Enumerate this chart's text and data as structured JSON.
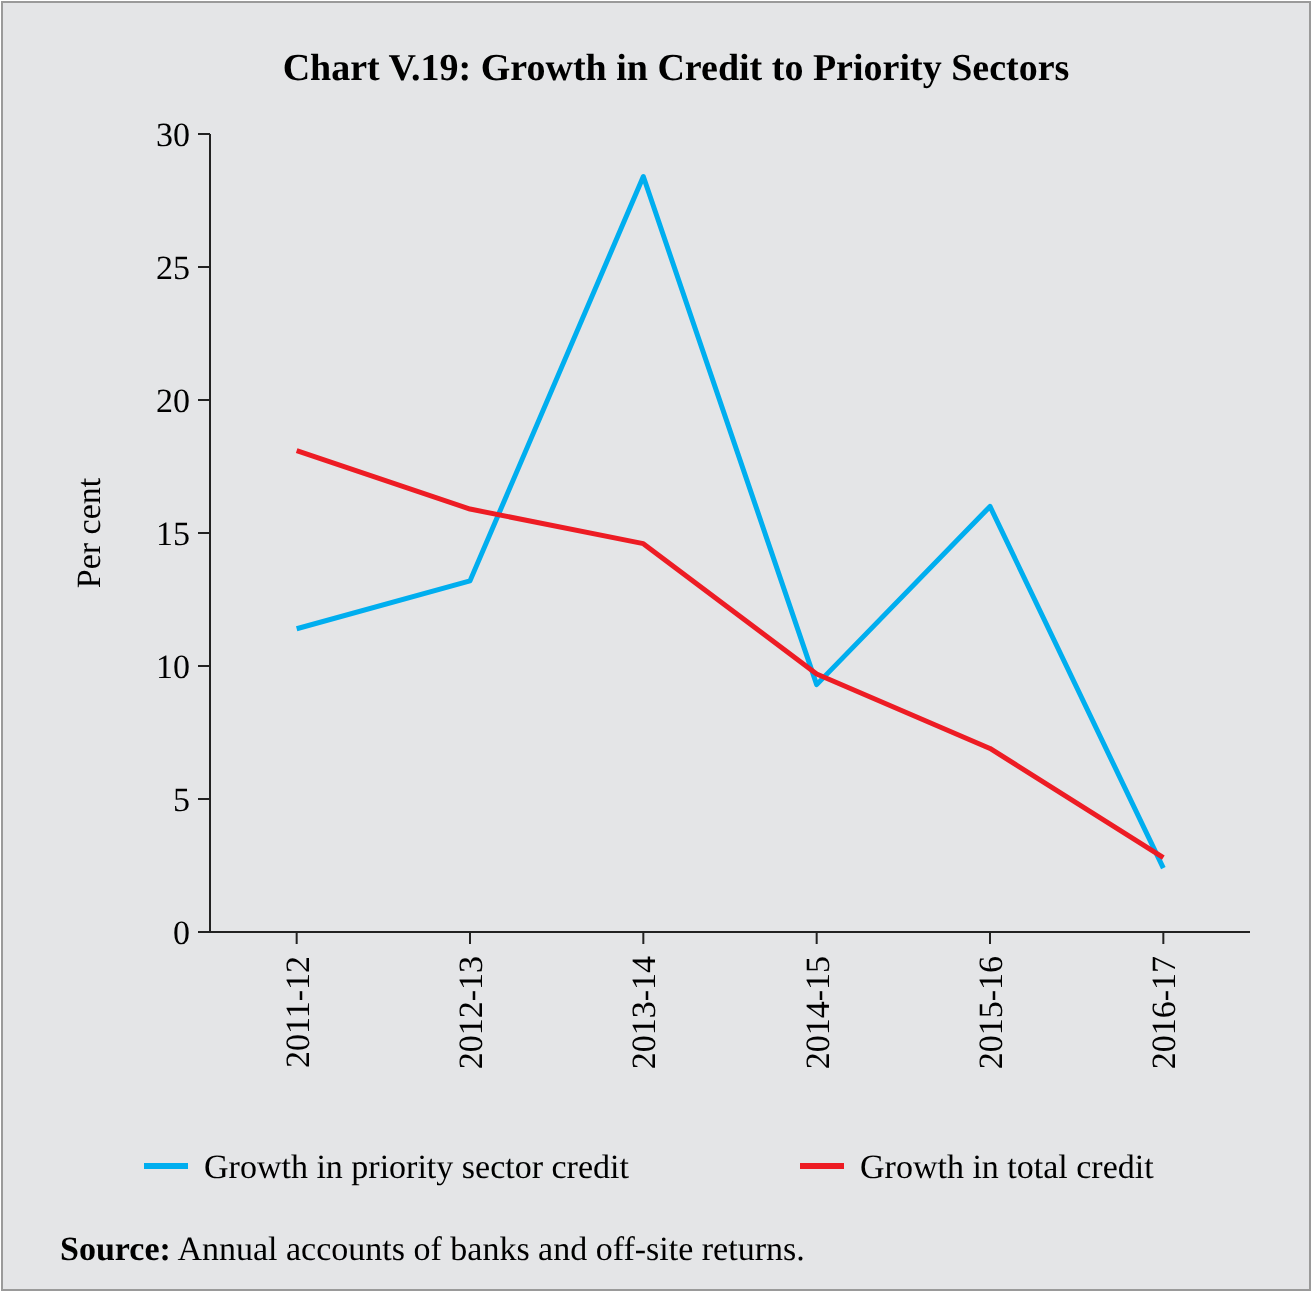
{
  "chart_data": {
    "type": "line",
    "title": "Chart V.19: Growth in Credit to Priority Sectors",
    "ylabel": "Per cent",
    "categories": [
      "2011-12",
      "2012-13",
      "2013-14",
      "2014-15",
      "2015-16",
      "2016-17"
    ],
    "series": [
      {
        "name": "Growth in priority sector credit",
        "color": "#00aeef",
        "values": [
          11.4,
          13.2,
          28.4,
          9.3,
          16.0,
          2.4
        ]
      },
      {
        "name": "Growth in total credit",
        "color": "#ed1c24",
        "values": [
          18.1,
          15.9,
          14.6,
          9.7,
          6.9,
          2.8
        ]
      }
    ],
    "ylim": [
      0,
      30
    ],
    "yticks": [
      0,
      5,
      10,
      15,
      20,
      25,
      30
    ],
    "grid": false,
    "legend": "bottom",
    "marker": "none",
    "line_style": "solid",
    "annotations": [
      "Source: Annual accounts of banks and off-site returns."
    ]
  }
}
